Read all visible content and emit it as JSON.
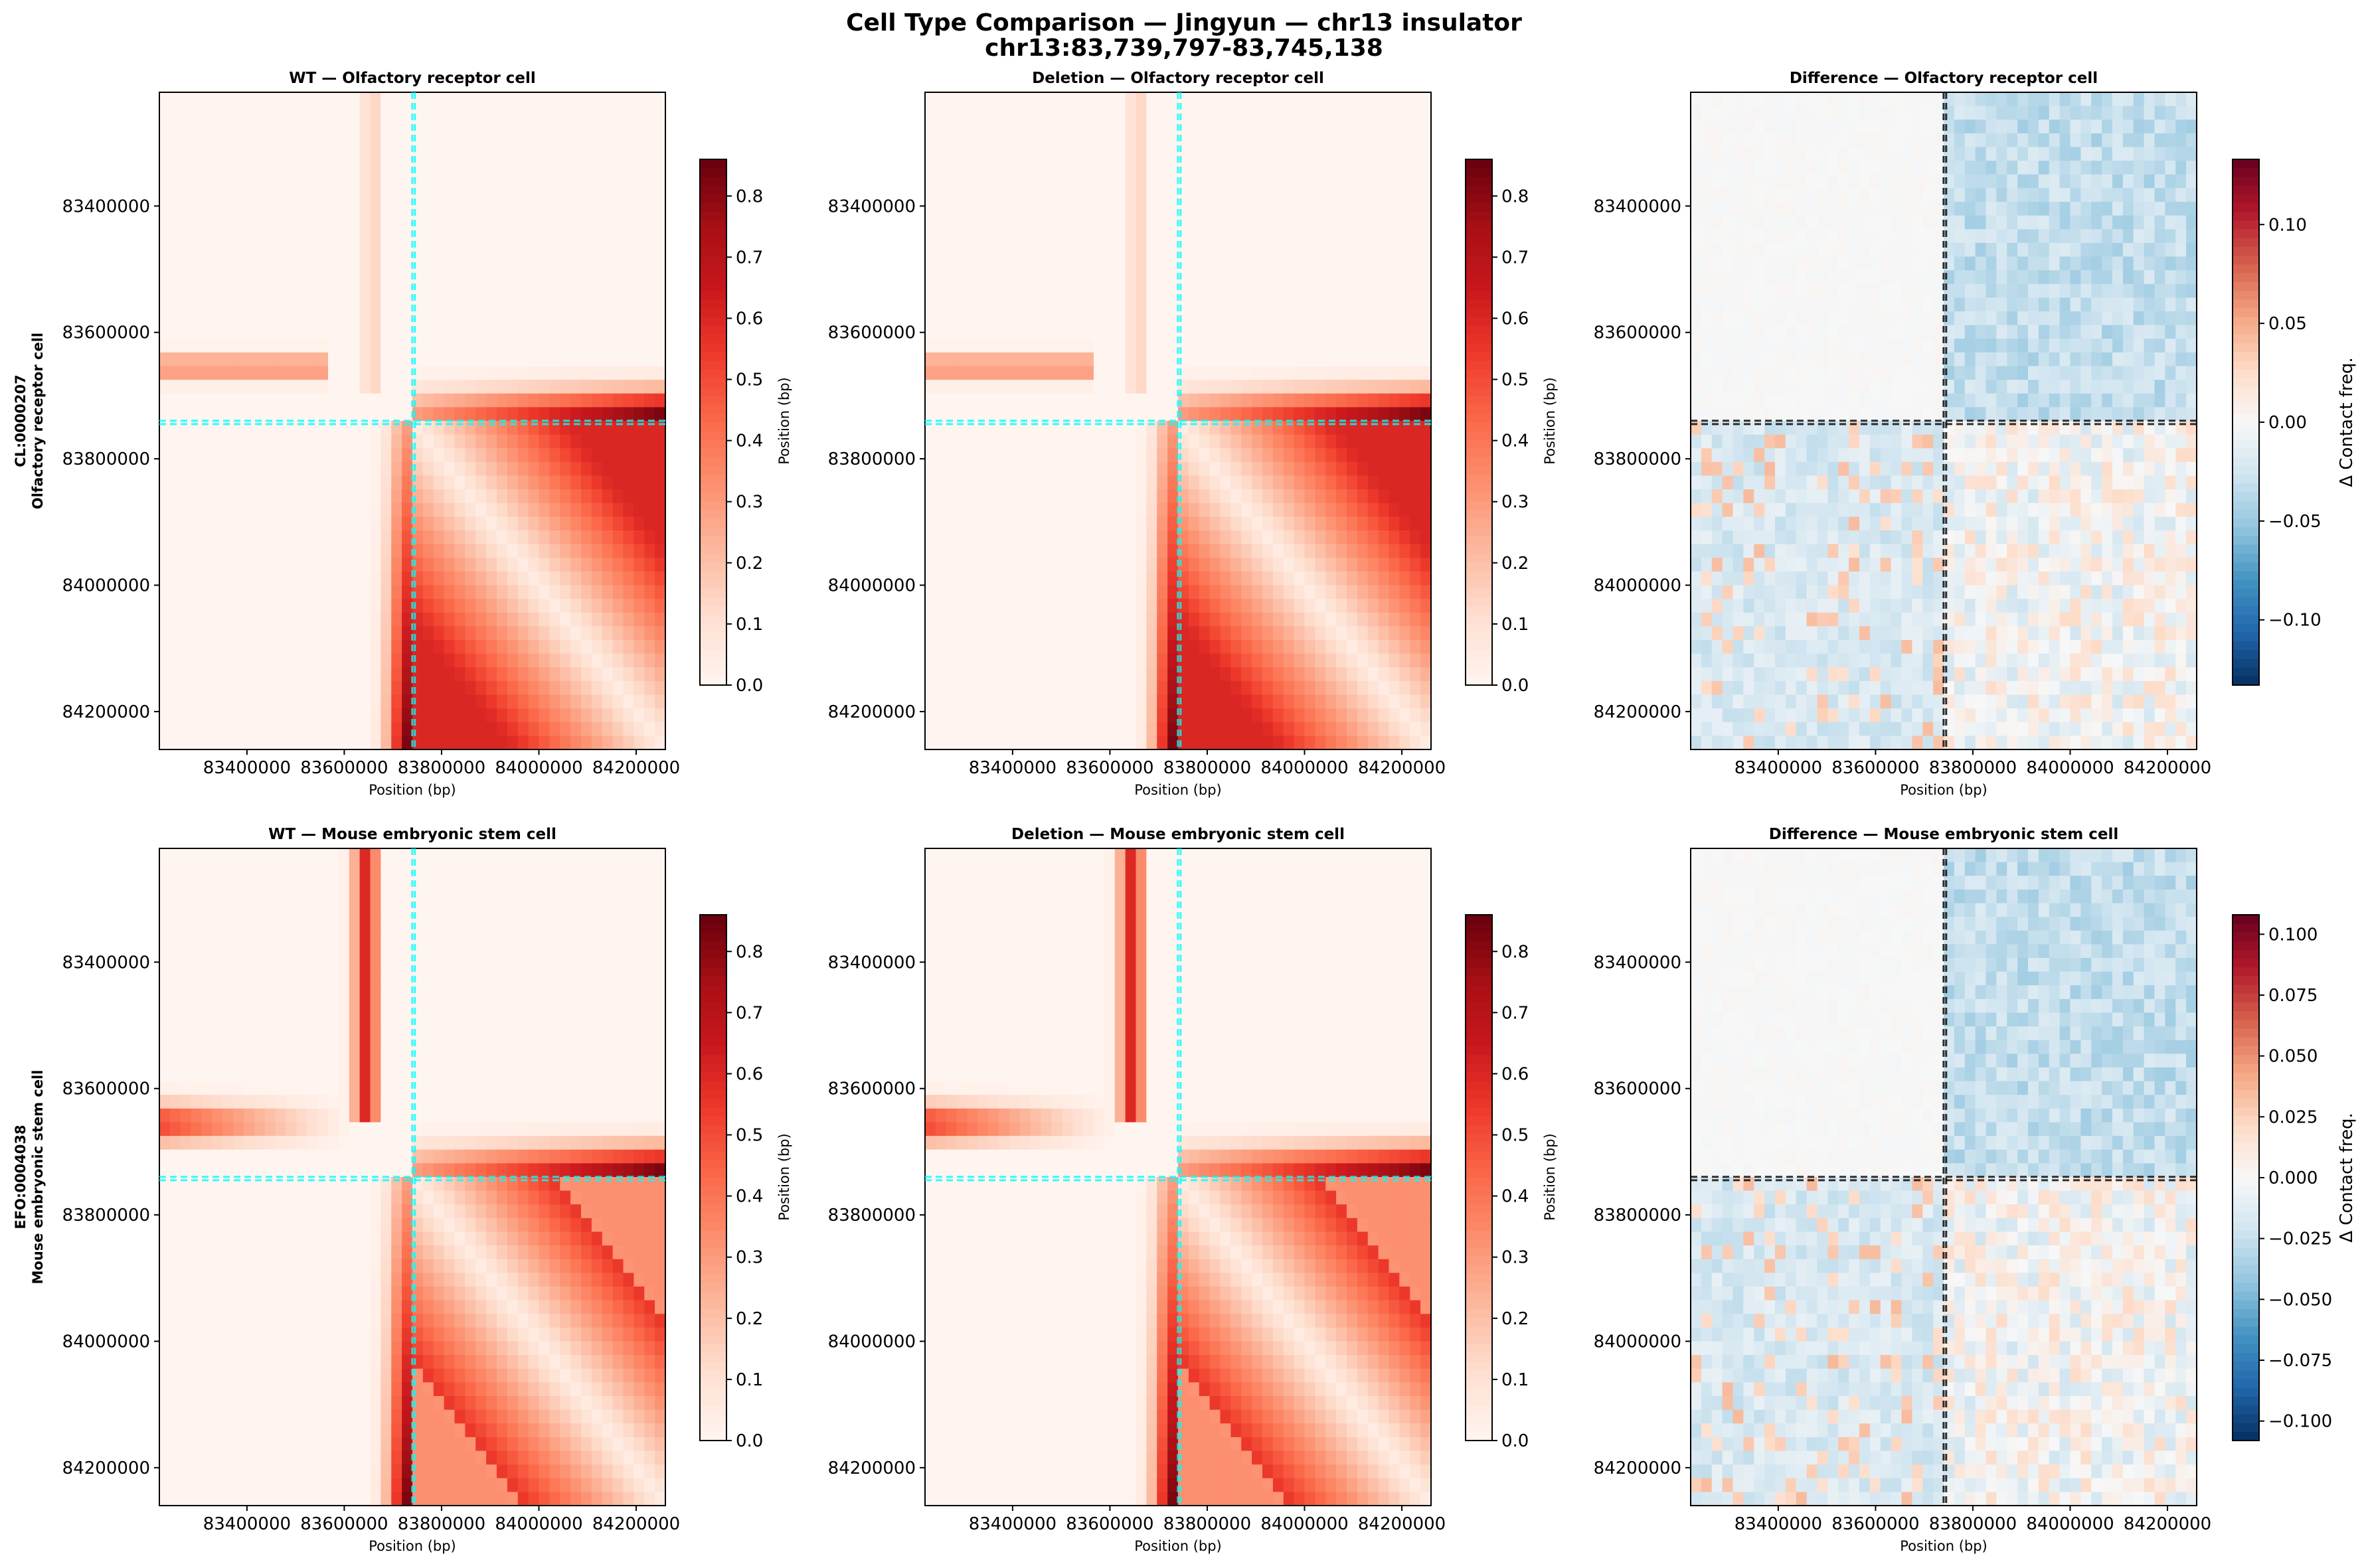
{
  "figure": {
    "title_line1": "Cell Type Comparison — Jingyun — chr13 insulator",
    "title_line2": "chr13:83,739,797-83,745,138"
  },
  "colors": {
    "reds_low": "#fff5f0",
    "reds_high": "#67000d",
    "diff_low": "#053061",
    "diff_mid": "#f7f7f7",
    "diff_high": "#67001f",
    "marker_cyan": "#00ffff",
    "marker_black": "#000000"
  },
  "chart_data": [
    {
      "type": "heatmap",
      "panel": "wt-olfactory",
      "title": "WT — Olfactory receptor cell",
      "xlabel": "Position (bp)",
      "ylabel": "",
      "row_label_line1": "CL:0000207",
      "row_label_line2": "Olfactory receptor cell",
      "xlim": [
        83220000,
        84260000
      ],
      "ylim": [
        83220000,
        84260000
      ],
      "xticks": [
        83400000,
        83600000,
        83800000,
        84000000,
        84200000
      ],
      "yticks": [
        83400000,
        83600000,
        83800000,
        84000000,
        84200000
      ],
      "xtick_labels": [
        "83400000",
        "83600000",
        "83800000",
        "84000000",
        "84200000"
      ],
      "ytick_labels": [
        "83400000",
        "83600000",
        "83800000",
        "84000000",
        "84200000"
      ],
      "colormap": "Reds",
      "clim": [
        0,
        0.86
      ],
      "colorbar_ticks": [
        0.0,
        0.1,
        0.2,
        0.3,
        0.4,
        0.5,
        0.6,
        0.7,
        0.8
      ],
      "colorbar_tick_labels": [
        "0.0",
        "0.1",
        "0.2",
        "0.3",
        "0.4",
        "0.5",
        "0.6",
        "0.7",
        "0.8"
      ],
      "colorbar_label": "",
      "marker_positions": [
        83739797,
        83745138
      ],
      "marker_color": "cyan"
    },
    {
      "type": "heatmap",
      "panel": "del-olfactory",
      "title": "Deletion — Olfactory receptor cell",
      "xlabel": "Position (bp)",
      "ylabel": "Position (bp)",
      "xlim": [
        83220000,
        84260000
      ],
      "ylim": [
        83220000,
        84260000
      ],
      "xticks": [
        83400000,
        83600000,
        83800000,
        84000000,
        84200000
      ],
      "yticks": [
        83400000,
        83600000,
        83800000,
        84000000,
        84200000
      ],
      "xtick_labels": [
        "83400000",
        "83600000",
        "83800000",
        "84000000",
        "84200000"
      ],
      "ytick_labels": [
        "83400000",
        "83600000",
        "83800000",
        "84000000",
        "84200000"
      ],
      "colormap": "Reds",
      "clim": [
        0,
        0.86
      ],
      "colorbar_ticks": [
        0.0,
        0.1,
        0.2,
        0.3,
        0.4,
        0.5,
        0.6,
        0.7,
        0.8
      ],
      "colorbar_tick_labels": [
        "0.0",
        "0.1",
        "0.2",
        "0.3",
        "0.4",
        "0.5",
        "0.6",
        "0.7",
        "0.8"
      ],
      "colorbar_label": "",
      "marker_positions": [
        83739797,
        83745138
      ],
      "marker_color": "cyan"
    },
    {
      "type": "heatmap",
      "panel": "diff-olfactory",
      "title": "Difference — Olfactory receptor cell",
      "xlabel": "Position (bp)",
      "ylabel": "Position (bp)",
      "xlim": [
        83220000,
        84260000
      ],
      "ylim": [
        83220000,
        84260000
      ],
      "xticks": [
        83400000,
        83600000,
        83800000,
        84000000,
        84200000
      ],
      "yticks": [
        83400000,
        83600000,
        83800000,
        84000000,
        84200000
      ],
      "xtick_labels": [
        "83400000",
        "83600000",
        "83800000",
        "84000000",
        "84200000"
      ],
      "ytick_labels": [
        "83400000",
        "83600000",
        "83800000",
        "84000000",
        "84200000"
      ],
      "colormap": "RdBu_r",
      "clim": [
        -0.133,
        0.133
      ],
      "colorbar_ticks": [
        -0.1,
        -0.05,
        0.0,
        0.05,
        0.1
      ],
      "colorbar_tick_labels": [
        "−0.10",
        "−0.05",
        "0.00",
        "0.05",
        "0.10"
      ],
      "colorbar_label": "Δ Contact freq.",
      "marker_positions": [
        83739797,
        83745138
      ],
      "marker_color": "black"
    },
    {
      "type": "heatmap",
      "panel": "wt-mesc",
      "title": "WT — Mouse embryonic stem cell",
      "xlabel": "Position (bp)",
      "ylabel": "",
      "row_label_line1": "EFO:0004038",
      "row_label_line2": "Mouse embryonic stem cell",
      "xlim": [
        83220000,
        84260000
      ],
      "ylim": [
        83220000,
        84260000
      ],
      "xticks": [
        83400000,
        83600000,
        83800000,
        84000000,
        84200000
      ],
      "yticks": [
        83400000,
        83600000,
        83800000,
        84000000,
        84200000
      ],
      "xtick_labels": [
        "83400000",
        "83600000",
        "83800000",
        "84000000",
        "84200000"
      ],
      "ytick_labels": [
        "83400000",
        "83600000",
        "83800000",
        "84000000",
        "84200000"
      ],
      "colormap": "Reds",
      "clim": [
        0,
        0.86
      ],
      "colorbar_ticks": [
        0.0,
        0.1,
        0.2,
        0.3,
        0.4,
        0.5,
        0.6,
        0.7,
        0.8
      ],
      "colorbar_tick_labels": [
        "0.0",
        "0.1",
        "0.2",
        "0.3",
        "0.4",
        "0.5",
        "0.6",
        "0.7",
        "0.8"
      ],
      "colorbar_label": "",
      "marker_positions": [
        83739797,
        83745138
      ],
      "marker_color": "cyan"
    },
    {
      "type": "heatmap",
      "panel": "del-mesc",
      "title": "Deletion — Mouse embryonic stem cell",
      "xlabel": "Position (bp)",
      "ylabel": "Position (bp)",
      "xlim": [
        83220000,
        84260000
      ],
      "ylim": [
        83220000,
        84260000
      ],
      "xticks": [
        83400000,
        83600000,
        83800000,
        84000000,
        84200000
      ],
      "yticks": [
        83400000,
        83600000,
        83800000,
        84000000,
        84200000
      ],
      "xtick_labels": [
        "83400000",
        "83600000",
        "83800000",
        "84000000",
        "84200000"
      ],
      "ytick_labels": [
        "83400000",
        "83600000",
        "83800000",
        "84000000",
        "84200000"
      ],
      "colormap": "Reds",
      "clim": [
        0,
        0.86
      ],
      "colorbar_ticks": [
        0.0,
        0.1,
        0.2,
        0.3,
        0.4,
        0.5,
        0.6,
        0.7,
        0.8
      ],
      "colorbar_tick_labels": [
        "0.0",
        "0.1",
        "0.2",
        "0.3",
        "0.4",
        "0.5",
        "0.6",
        "0.7",
        "0.8"
      ],
      "colorbar_label": "",
      "marker_positions": [
        83739797,
        83745138
      ],
      "marker_color": "cyan"
    },
    {
      "type": "heatmap",
      "panel": "diff-mesc",
      "title": "Difference — Mouse embryonic stem cell",
      "xlabel": "Position (bp)",
      "ylabel": "Position (bp)",
      "xlim": [
        83220000,
        84260000
      ],
      "ylim": [
        83220000,
        84260000
      ],
      "xticks": [
        83400000,
        83600000,
        83800000,
        84000000,
        84200000
      ],
      "yticks": [
        83400000,
        83600000,
        83800000,
        84000000,
        84200000
      ],
      "xtick_labels": [
        "83400000",
        "83600000",
        "83800000",
        "84000000",
        "84200000"
      ],
      "ytick_labels": [
        "83400000",
        "83600000",
        "83800000",
        "84000000",
        "84200000"
      ],
      "colormap": "RdBu_r",
      "clim": [
        -0.108,
        0.108
      ],
      "colorbar_ticks": [
        -0.1,
        -0.075,
        -0.05,
        -0.025,
        0.0,
        0.025,
        0.05,
        0.075,
        0.1
      ],
      "colorbar_tick_labels": [
        "−0.100",
        "−0.075",
        "−0.050",
        "−0.025",
        "0.000",
        "0.025",
        "0.050",
        "0.075",
        "0.100"
      ],
      "colorbar_label": "Δ Contact freq.",
      "marker_positions": [
        83739797,
        83745138
      ],
      "marker_color": "black"
    }
  ]
}
